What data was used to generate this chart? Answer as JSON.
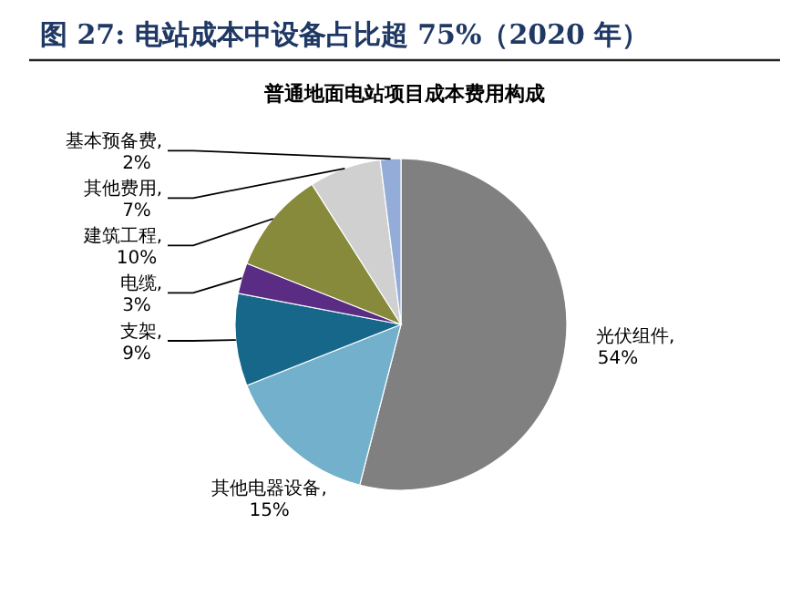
{
  "chart_data": {
    "type": "pie",
    "title": "图 27:  电站成本中设备占比超 75%（2020 年）",
    "subtitle": "普通地面电站项目成本费用构成",
    "categories": [
      "光伏组件",
      "其他电器设备",
      "支架",
      "电缆",
      "建筑工程",
      "其他费用",
      "基本预备费"
    ],
    "values": [
      54,
      15,
      9,
      3,
      10,
      7,
      2
    ],
    "value_labels": [
      ", 54%",
      ", 15%",
      ", 9%",
      ", 3%",
      ", 10%",
      ", 7%",
      ", 2%"
    ],
    "colors": [
      "#808080",
      "#72b0cc",
      "#17678a",
      "#5b2c83",
      "#868a3a",
      "#d0d0d0",
      "#94acd8"
    ]
  }
}
